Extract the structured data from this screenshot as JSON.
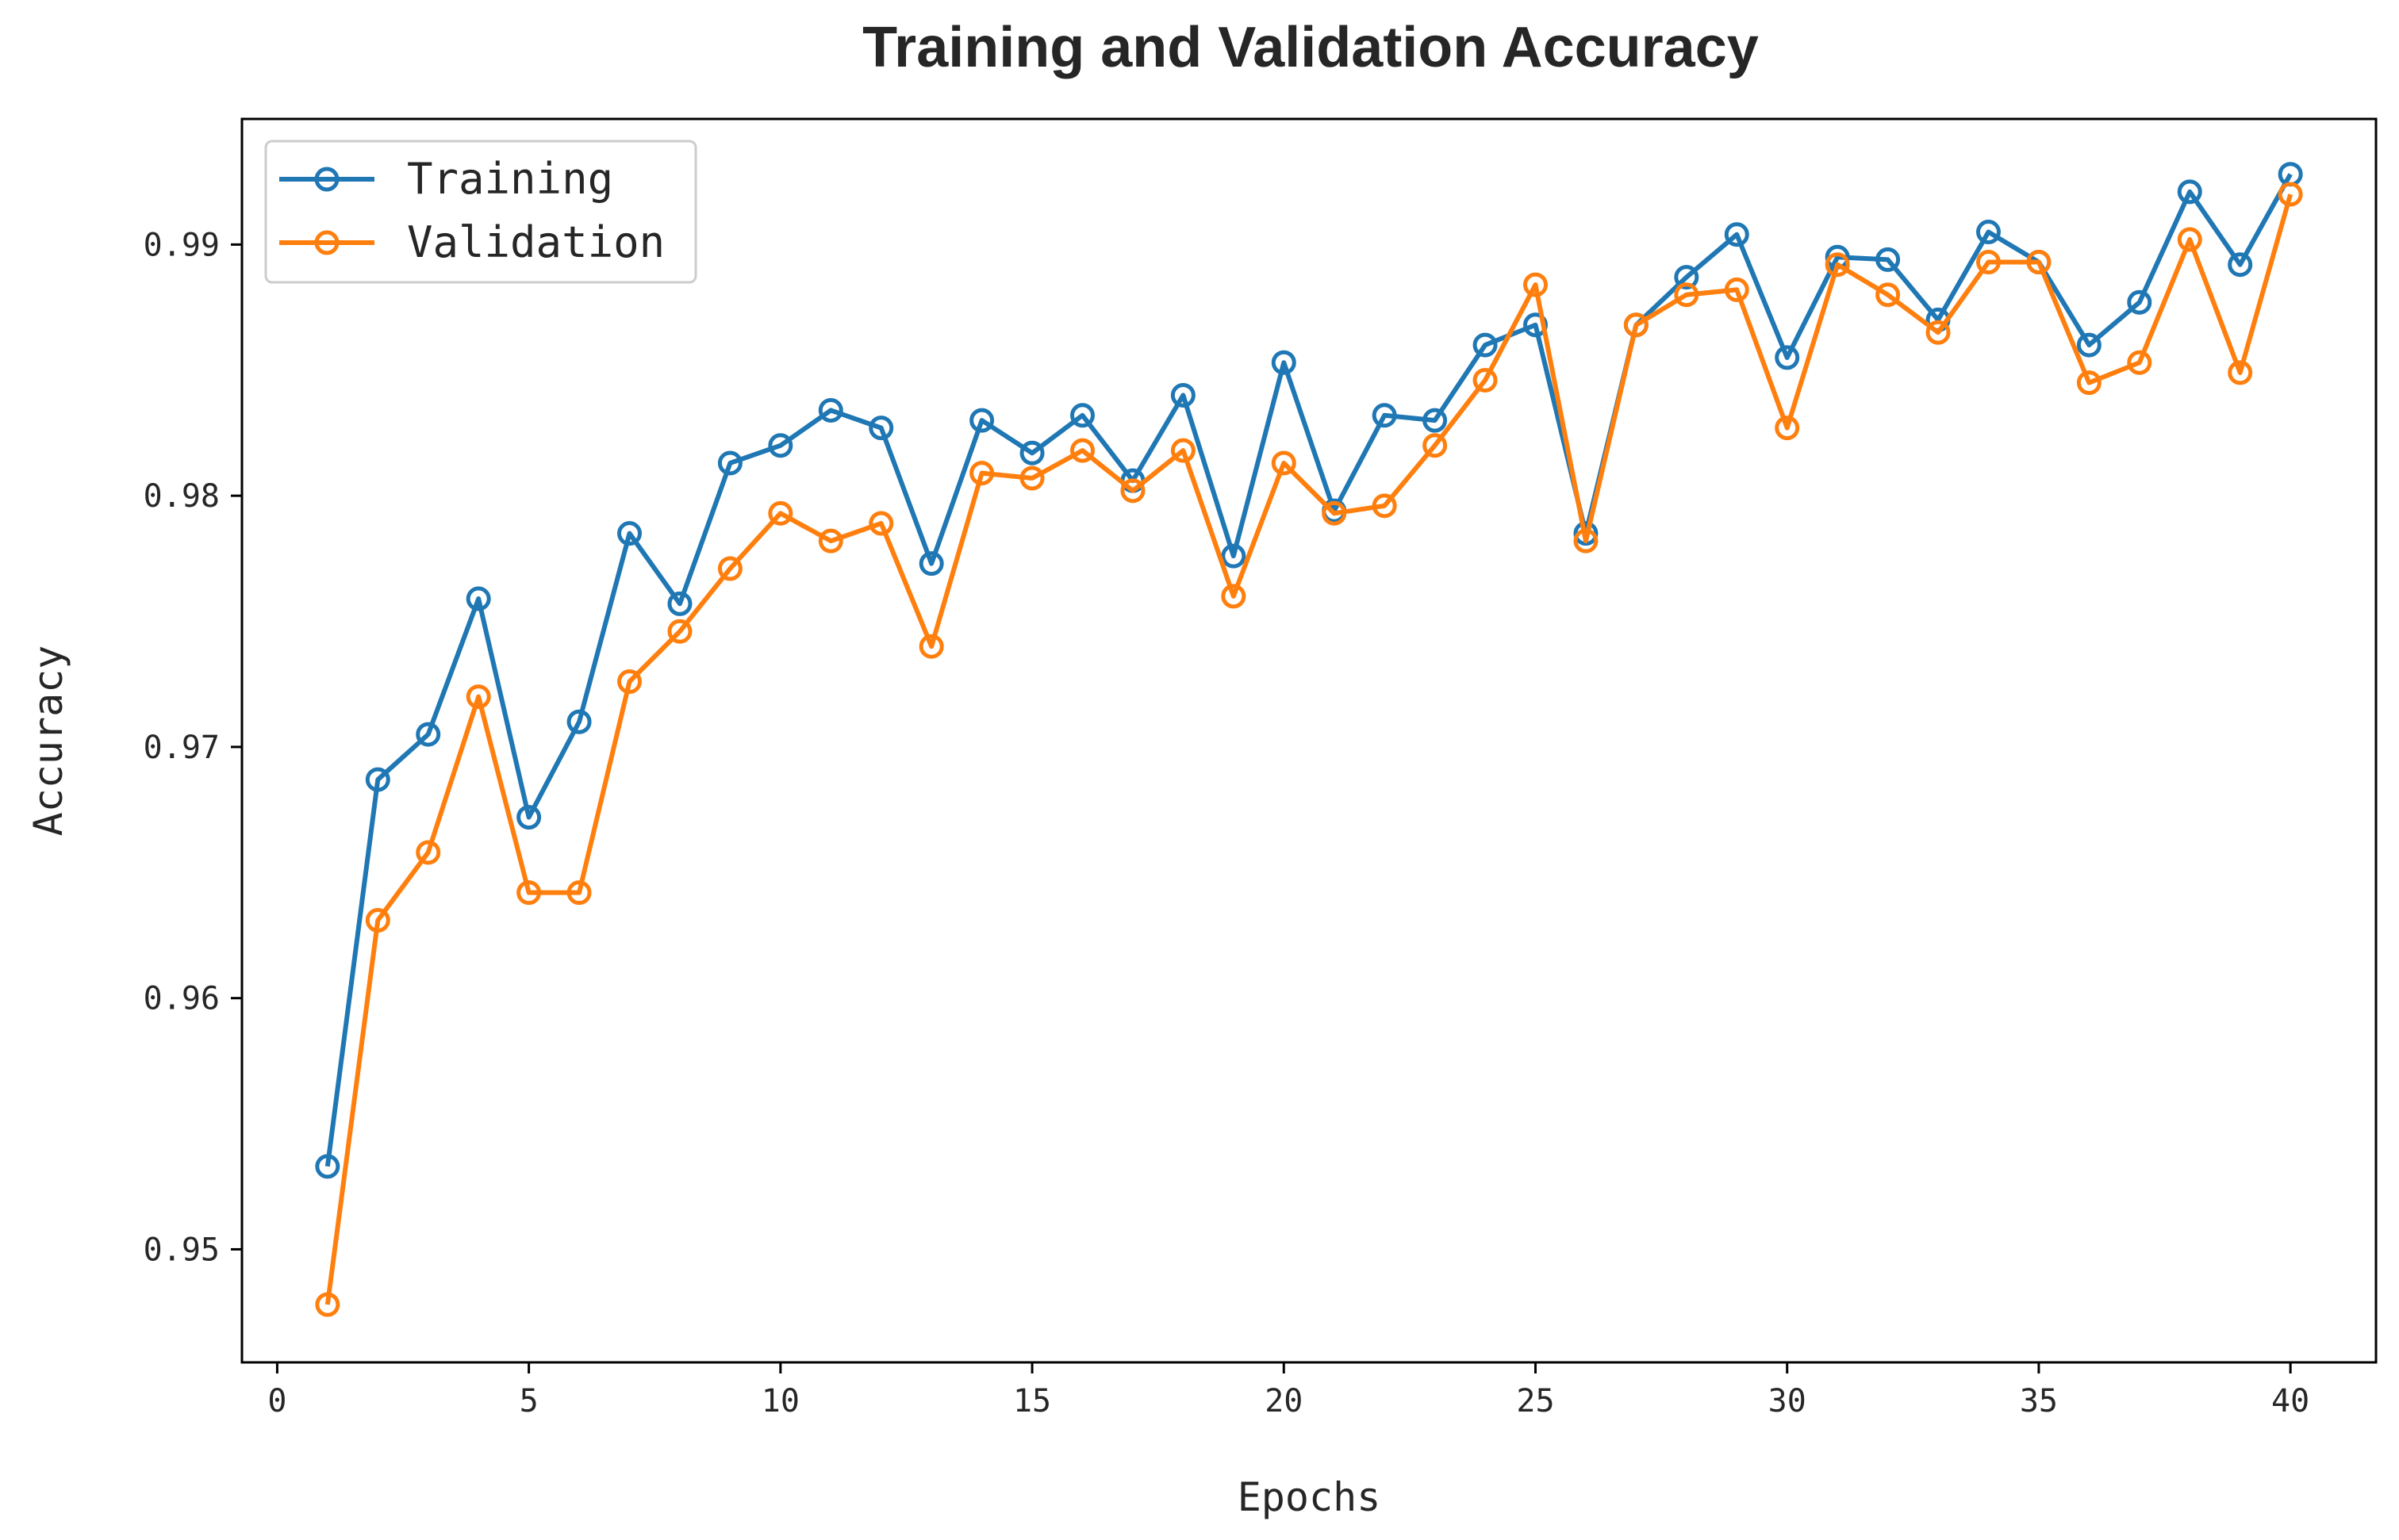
{
  "chart_data": {
    "type": "line",
    "title": "Training and Validation Accuracy",
    "xlabel": "Epochs",
    "ylabel": "Accuracy",
    "xlim": [
      -0.7,
      41.7
    ],
    "ylim": [
      0.9455,
      0.995
    ],
    "xticks": [
      0,
      5,
      10,
      15,
      20,
      25,
      30,
      35,
      40
    ],
    "xtick_labels": [
      "0",
      "5",
      "10",
      "15",
      "20",
      "25",
      "30",
      "35",
      "40"
    ],
    "yticks": [
      0.95,
      0.96,
      0.97,
      0.98,
      0.99
    ],
    "ytick_labels": [
      "0.95",
      "0.96",
      "0.97",
      "0.98",
      "0.99"
    ],
    "grid": false,
    "legend_position": "top-left",
    "x": [
      1,
      2,
      3,
      4,
      5,
      6,
      7,
      8,
      9,
      10,
      11,
      12,
      13,
      14,
      15,
      16,
      17,
      18,
      19,
      20,
      21,
      22,
      23,
      24,
      25,
      26,
      27,
      28,
      29,
      30,
      31,
      32,
      33,
      34,
      35,
      36,
      37,
      38,
      39,
      40
    ],
    "series": [
      {
        "name": "Training",
        "color": "#1f77b4",
        "values": [
          0.9533,
          0.9687,
          0.9705,
          0.9759,
          0.9672,
          0.971,
          0.9785,
          0.9757,
          0.9813,
          0.982,
          0.9834,
          0.9827,
          0.9773,
          0.983,
          0.9817,
          0.9832,
          0.9806,
          0.984,
          0.9776,
          0.9853,
          0.9794,
          0.9832,
          0.983,
          0.986,
          0.9868,
          0.9785,
          0.9868,
          0.9887,
          0.9904,
          0.9855,
          0.9895,
          0.9894,
          0.987,
          0.9905,
          0.9893,
          0.986,
          0.9877,
          0.9921,
          0.9892,
          0.9928
        ]
      },
      {
        "name": "Validation",
        "color": "#ff7f0e",
        "values": [
          0.9478,
          0.9631,
          0.9658,
          0.972,
          0.9642,
          0.9642,
          0.9726,
          0.9746,
          0.9771,
          0.9793,
          0.9782,
          0.9789,
          0.974,
          0.9809,
          0.9807,
          0.9818,
          0.9802,
          0.9818,
          0.976,
          0.9813,
          0.9793,
          0.9796,
          0.982,
          0.9846,
          0.9884,
          0.9782,
          0.9868,
          0.988,
          0.9882,
          0.9827,
          0.9892,
          0.988,
          0.9865,
          0.9893,
          0.9893,
          0.9845,
          0.9853,
          0.9902,
          0.9849,
          0.992
        ]
      }
    ]
  }
}
